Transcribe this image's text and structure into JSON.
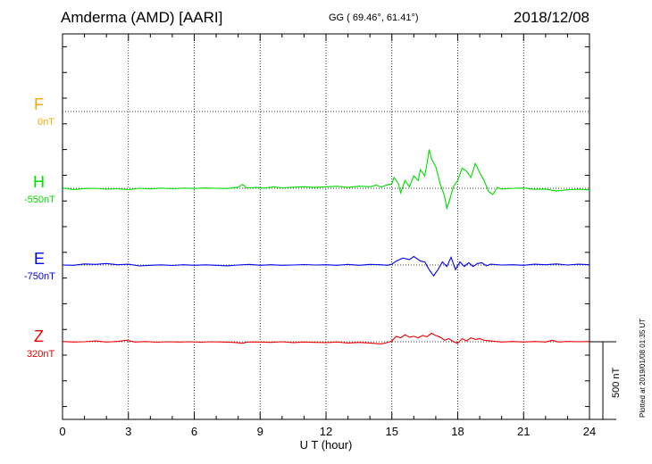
{
  "header": {
    "station": "Amderma (AMD)  [AARI]",
    "coords": "GG ( 69.46°,  61.41°)",
    "date": "2018/12/08"
  },
  "chart_data": {
    "type": "line",
    "xlabel": "U T (hour)",
    "xlim": [
      0,
      24
    ],
    "xticks": [
      0,
      3,
      6,
      9,
      12,
      15,
      18,
      21,
      24
    ],
    "grid": true,
    "scale_bar": "500 nT",
    "series": [
      {
        "name": "F",
        "baseline": "0nT",
        "color": "#ffa500",
        "offset_nT": 0,
        "points": []
      },
      {
        "name": "H",
        "baseline": "-550nT",
        "color": "#00dd00",
        "offset_nT": -550,
        "points": [
          [
            0,
            -548
          ],
          [
            0.5,
            -558
          ],
          [
            1,
            -552
          ],
          [
            1.5,
            -550
          ],
          [
            2,
            -556
          ],
          [
            2.5,
            -553
          ],
          [
            3,
            -558
          ],
          [
            3.5,
            -550
          ],
          [
            4,
            -554
          ],
          [
            4.5,
            -549
          ],
          [
            5,
            -553
          ],
          [
            5.5,
            -549
          ],
          [
            6,
            -551
          ],
          [
            6.5,
            -548
          ],
          [
            7,
            -550
          ],
          [
            7.5,
            -552
          ],
          [
            8,
            -543
          ],
          [
            8.2,
            -525
          ],
          [
            8.4,
            -548
          ],
          [
            8.8,
            -545
          ],
          [
            9.2,
            -549
          ],
          [
            9.6,
            -541
          ],
          [
            10,
            -547
          ],
          [
            10.5,
            -543
          ],
          [
            11,
            -540
          ],
          [
            11.5,
            -545
          ],
          [
            12,
            -540
          ],
          [
            12.5,
            -537
          ],
          [
            13,
            -545
          ],
          [
            13.5,
            -536
          ],
          [
            14,
            -540
          ],
          [
            14.3,
            -530
          ],
          [
            14.5,
            -542
          ],
          [
            14.8,
            -528
          ],
          [
            15,
            -520
          ],
          [
            15.1,
            -480
          ],
          [
            15.3,
            -520
          ],
          [
            15.4,
            -580
          ],
          [
            15.6,
            -500
          ],
          [
            15.8,
            -540
          ],
          [
            16,
            -470
          ],
          [
            16.2,
            -500
          ],
          [
            16.3,
            -430
          ],
          [
            16.5,
            -470
          ],
          [
            16.6,
            -390
          ],
          [
            16.7,
            -300
          ],
          [
            16.8,
            -360
          ],
          [
            17,
            -410
          ],
          [
            17.2,
            -520
          ],
          [
            17.4,
            -600
          ],
          [
            17.5,
            -680
          ],
          [
            17.6,
            -640
          ],
          [
            17.8,
            -540
          ],
          [
            18,
            -500
          ],
          [
            18.2,
            -420
          ],
          [
            18.4,
            -440
          ],
          [
            18.6,
            -480
          ],
          [
            18.8,
            -390
          ],
          [
            19,
            -450
          ],
          [
            19.2,
            -500
          ],
          [
            19.4,
            -570
          ],
          [
            19.6,
            -590
          ],
          [
            19.8,
            -545
          ],
          [
            20,
            -555
          ],
          [
            20.5,
            -550
          ],
          [
            21,
            -548
          ],
          [
            21.5,
            -557
          ],
          [
            22,
            -555
          ],
          [
            22.5,
            -568
          ],
          [
            23,
            -560
          ],
          [
            23.5,
            -556
          ],
          [
            24,
            -560
          ]
        ]
      },
      {
        "name": "E",
        "baseline": "-750nT",
        "color": "#0000ee",
        "offset_nT": -750,
        "points": [
          [
            0,
            -750
          ],
          [
            0.5,
            -752
          ],
          [
            1,
            -743
          ],
          [
            1.5,
            -746
          ],
          [
            2,
            -740
          ],
          [
            2.5,
            -748
          ],
          [
            3,
            -745
          ],
          [
            3.5,
            -756
          ],
          [
            4,
            -752
          ],
          [
            4.5,
            -749
          ],
          [
            5,
            -753
          ],
          [
            5.5,
            -748
          ],
          [
            6,
            -752
          ],
          [
            6.5,
            -749
          ],
          [
            7,
            -752
          ],
          [
            7.5,
            -755
          ],
          [
            8,
            -750
          ],
          [
            8.5,
            -746
          ],
          [
            9,
            -752
          ],
          [
            9.5,
            -748
          ],
          [
            10,
            -752
          ],
          [
            10.5,
            -750
          ],
          [
            11,
            -747
          ],
          [
            11.5,
            -750
          ],
          [
            12,
            -748
          ],
          [
            12.5,
            -752
          ],
          [
            13,
            -746
          ],
          [
            13.5,
            -752
          ],
          [
            14,
            -746
          ],
          [
            14.5,
            -748
          ],
          [
            14.8,
            -752
          ],
          [
            15,
            -744
          ],
          [
            15.2,
            -725
          ],
          [
            15.5,
            -705
          ],
          [
            15.8,
            -715
          ],
          [
            16,
            -695
          ],
          [
            16.3,
            -725
          ],
          [
            16.5,
            -730
          ],
          [
            16.7,
            -780
          ],
          [
            16.9,
            -820
          ],
          [
            17.1,
            -780
          ],
          [
            17.3,
            -730
          ],
          [
            17.5,
            -760
          ],
          [
            17.7,
            -700
          ],
          [
            17.9,
            -780
          ],
          [
            18.1,
            -730
          ],
          [
            18.3,
            -760
          ],
          [
            18.5,
            -735
          ],
          [
            18.7,
            -760
          ],
          [
            18.9,
            -740
          ],
          [
            19.1,
            -735
          ],
          [
            19.3,
            -755
          ],
          [
            19.5,
            -745
          ],
          [
            20,
            -750
          ],
          [
            20.5,
            -748
          ],
          [
            21,
            -752
          ],
          [
            21.5,
            -745
          ],
          [
            22,
            -748
          ],
          [
            22.5,
            -743
          ],
          [
            23,
            -750
          ],
          [
            23.5,
            -745
          ],
          [
            24,
            -748
          ]
        ]
      },
      {
        "name": "Z",
        "baseline": "320nT",
        "color": "#ee0000",
        "offset_nT": 320,
        "points": [
          [
            0,
            322
          ],
          [
            0.5,
            318
          ],
          [
            1,
            320
          ],
          [
            1.5,
            325
          ],
          [
            2,
            318
          ],
          [
            2.5,
            322
          ],
          [
            2.9,
            330
          ],
          [
            3.3,
            318
          ],
          [
            3.8,
            321
          ],
          [
            4.3,
            317
          ],
          [
            4.8,
            320
          ],
          [
            5.3,
            318
          ],
          [
            5.8,
            320
          ],
          [
            6.3,
            317
          ],
          [
            6.8,
            320
          ],
          [
            7.3,
            318
          ],
          [
            7.8,
            316
          ],
          [
            8.2,
            310
          ],
          [
            8.4,
            318
          ],
          [
            9,
            318
          ],
          [
            9.5,
            316
          ],
          [
            10,
            320
          ],
          [
            10.5,
            315
          ],
          [
            11,
            318
          ],
          [
            11.5,
            316
          ],
          [
            12,
            314
          ],
          [
            12.5,
            318
          ],
          [
            13,
            312
          ],
          [
            13.5,
            316
          ],
          [
            14,
            312
          ],
          [
            14.5,
            306
          ],
          [
            14.8,
            315
          ],
          [
            15,
            325
          ],
          [
            15.2,
            355
          ],
          [
            15.4,
            345
          ],
          [
            15.6,
            365
          ],
          [
            15.8,
            350
          ],
          [
            16,
            355
          ],
          [
            16.2,
            345
          ],
          [
            16.4,
            360
          ],
          [
            16.6,
            352
          ],
          [
            16.8,
            375
          ],
          [
            17,
            360
          ],
          [
            17.2,
            350
          ],
          [
            17.4,
            330
          ],
          [
            17.6,
            340
          ],
          [
            17.8,
            320
          ],
          [
            18,
            310
          ],
          [
            18.2,
            340
          ],
          [
            18.4,
            325
          ],
          [
            18.6,
            345
          ],
          [
            18.8,
            335
          ],
          [
            19,
            340
          ],
          [
            19.2,
            330
          ],
          [
            19.5,
            325
          ],
          [
            20,
            318
          ],
          [
            20.5,
            322
          ],
          [
            21,
            318
          ],
          [
            21.5,
            322
          ],
          [
            22,
            318
          ],
          [
            22.3,
            330
          ],
          [
            22.6,
            318
          ],
          [
            23,
            322
          ],
          [
            23.5,
            320
          ],
          [
            24,
            322
          ]
        ]
      }
    ]
  },
  "footer": {
    "plotted": "Plotted at 2019/01/08 01:35 UT"
  }
}
